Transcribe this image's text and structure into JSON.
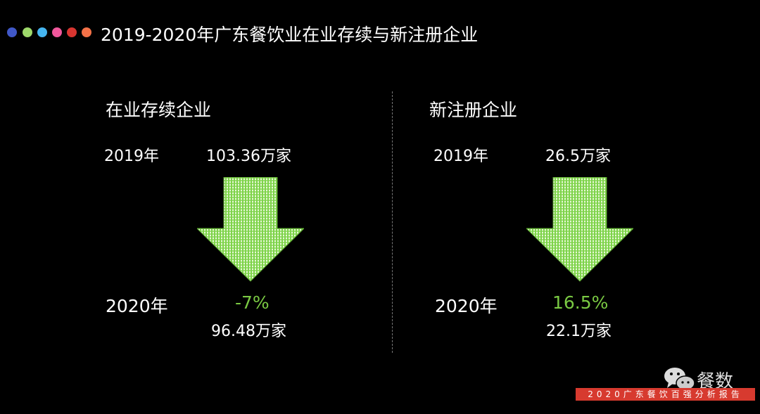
{
  "header": {
    "title": "2019-2020年广东餐饮业在业存续与新注册企业",
    "dot_colors": [
      "#4058c8",
      "#9ed86a",
      "#45b5f0",
      "#f0579c",
      "#d83530",
      "#f47248"
    ]
  },
  "left": {
    "heading": "在业存续企业",
    "year_2019": "2019年",
    "value_2019": "103.36万家",
    "year_2020": "2020年",
    "change": "-7%",
    "value_2020": "96.48万家",
    "arrow": "down-arrow-icon"
  },
  "right": {
    "heading": "新注册企业",
    "year_2019": "2019年",
    "value_2019": "26.5万家",
    "year_2020": "2020年",
    "change": "16.5%",
    "value_2020": "22.1万家",
    "arrow": "down-arrow-icon"
  },
  "watermark": {
    "brand": "餐数",
    "banner": "2020广东餐饮百强分析报告"
  },
  "colors": {
    "accent_green": "#7ac943",
    "banner_red": "#d73a2f"
  }
}
